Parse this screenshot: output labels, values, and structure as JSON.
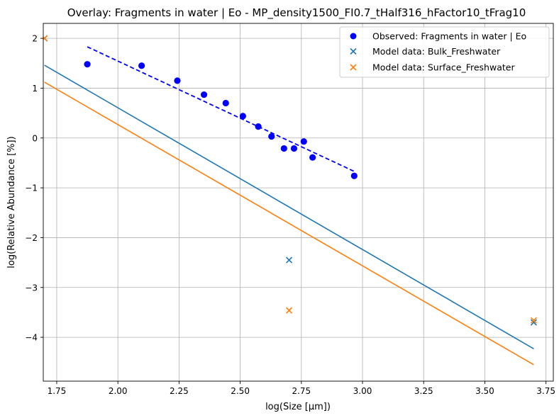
{
  "chart_data": {
    "type": "scatter",
    "title": "Overlay: Fragments in water | Eo - MP_density1500_FI0.7_tHalf316_hFactor10_tFrag10",
    "xlabel": "log(Size [µm])",
    "ylabel": "log(Relative Abundance [%])",
    "xlim": [
      1.695,
      3.78
    ],
    "ylim": [
      -4.88,
      2.3
    ],
    "xticks": [
      1.75,
      2.0,
      2.25,
      2.5,
      2.75,
      3.0,
      3.25,
      3.5,
      3.75
    ],
    "xtick_labels": [
      "1.75",
      "2.00",
      "2.25",
      "2.50",
      "2.75",
      "3.00",
      "3.25",
      "3.50",
      "3.75"
    ],
    "yticks": [
      2,
      1,
      0,
      -1,
      -2,
      -3,
      -4
    ],
    "ytick_labels": [
      "2",
      "1",
      "0",
      "−1",
      "−2",
      "−3",
      "−4"
    ],
    "grid": true,
    "legend_position": "top-right",
    "legend": [
      {
        "label": "Observed: Fragments in water | Eo",
        "marker": "circle",
        "color": "#0000ff"
      },
      {
        "label": "Model data: Bulk_Freshwater",
        "marker": "x",
        "color": "#1f77b4"
      },
      {
        "label": "Model data: Surface_Freshwater",
        "marker": "x",
        "color": "#ff7f0e"
      }
    ],
    "observed": {
      "color": "#0000ff",
      "x": [
        1.875,
        2.097,
        2.243,
        2.352,
        2.441,
        2.511,
        2.574,
        2.628,
        2.679,
        2.72,
        2.76,
        2.796,
        2.966
      ],
      "y": [
        1.48,
        1.45,
        1.15,
        0.87,
        0.7,
        0.44,
        0.23,
        0.03,
        -0.21,
        -0.21,
        -0.07,
        -0.39,
        -0.76
      ]
    },
    "observed_fit": {
      "color": "#0000ff",
      "style": "dashed",
      "x": [
        1.875,
        2.966
      ],
      "y": [
        1.83,
        -0.67
      ]
    },
    "bulk_points": {
      "color": "#1f77b4",
      "x": [
        1.7,
        2.7,
        3.7
      ],
      "y": [
        2.0,
        -2.45,
        -3.7
      ]
    },
    "surface_points": {
      "color": "#ff7f0e",
      "x": [
        1.7,
        2.7,
        3.7
      ],
      "y": [
        2.0,
        -3.46,
        -3.66
      ]
    },
    "bulk_fit": {
      "color": "#1f77b4",
      "x": [
        1.7,
        3.7
      ],
      "y": [
        1.46,
        -4.23
      ]
    },
    "surface_fit": {
      "color": "#ff7f0e",
      "x": [
        1.7,
        3.7
      ],
      "y": [
        1.12,
        -4.55
      ]
    }
  }
}
